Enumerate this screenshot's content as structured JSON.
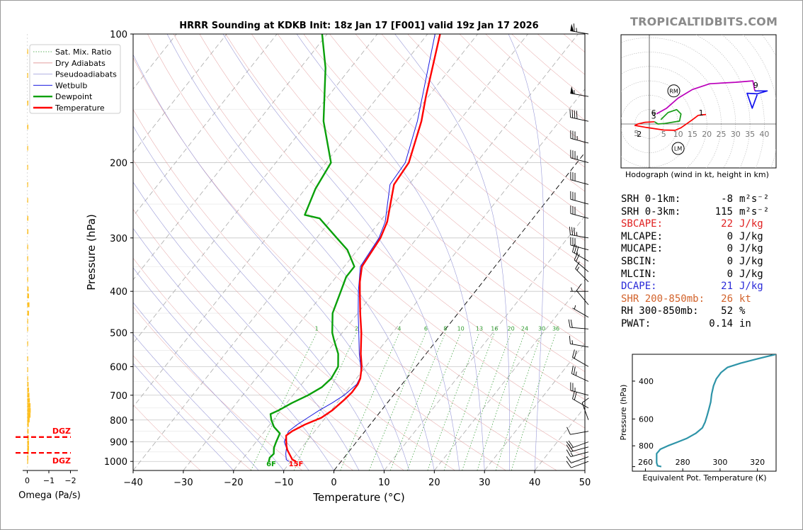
{
  "title": "HRRR Sounding at KDKB Init: 18z Jan 17 [F001] valid 19z Jan 17 2026",
  "brand": "TROPICALTIDBITS.COM",
  "skewt": {
    "xlabel": "Temperature (°C)",
    "ylabel": "Pressure (hPa)",
    "x_ticks": [
      -40,
      -30,
      -20,
      -10,
      0,
      10,
      20,
      30,
      40,
      50
    ],
    "x_tick_labels": [
      "−40",
      "−30",
      "−20",
      "−10",
      "0",
      "10",
      "20",
      "30",
      "40",
      "50"
    ],
    "y_ticks": [
      100,
      200,
      300,
      400,
      500,
      600,
      700,
      800,
      900,
      1000
    ],
    "xlim": [
      -40,
      50
    ],
    "ylim": [
      1050,
      100
    ],
    "legend": [
      "Sat. Mix. Ratio",
      "Dry Adiabats",
      "Pseudoadiabats",
      "Wetbulb",
      "Dewpoint",
      "Temperature"
    ],
    "mixing_ratio_labels": [
      "1",
      "2",
      "4",
      "6",
      "8",
      "10",
      "13",
      "16",
      "20",
      "24",
      "30",
      "36"
    ],
    "surface_dewpoint_label": "6F",
    "surface_temperature_label": "15F",
    "temperature_c": [
      [
        1000,
        -9
      ],
      [
        990,
        -10
      ],
      [
        960,
        -11.5
      ],
      [
        940,
        -12.5
      ],
      [
        920,
        -13.3
      ],
      [
        900,
        -14
      ],
      [
        870,
        -15
      ],
      [
        850,
        -14.5
      ],
      [
        820,
        -13
      ],
      [
        790,
        -10.8
      ],
      [
        760,
        -9.8
      ],
      [
        720,
        -9.1
      ],
      [
        690,
        -8.7
      ],
      [
        660,
        -8.8
      ],
      [
        640,
        -9.2
      ],
      [
        600,
        -10.8
      ],
      [
        560,
        -13
      ],
      [
        500,
        -16.2
      ],
      [
        450,
        -19.5
      ],
      [
        400,
        -23
      ],
      [
        380,
        -24.5
      ],
      [
        350,
        -26.5
      ],
      [
        300,
        -27.3
      ],
      [
        275,
        -28.5
      ],
      [
        225,
        -33
      ],
      [
        200,
        -33.5
      ],
      [
        160,
        -37.5
      ],
      [
        140,
        -40.5
      ],
      [
        100,
        -47.5
      ]
    ],
    "dewpoint_c": [
      [
        1000,
        -14.4
      ],
      [
        980,
        -14.8
      ],
      [
        960,
        -14.6
      ],
      [
        930,
        -15.5
      ],
      [
        900,
        -16
      ],
      [
        860,
        -16.6
      ],
      [
        830,
        -18.8
      ],
      [
        800,
        -20.4
      ],
      [
        775,
        -21.5
      ],
      [
        760,
        -20.5
      ],
      [
        730,
        -19
      ],
      [
        700,
        -17
      ],
      [
        670,
        -15.5
      ],
      [
        640,
        -15
      ],
      [
        600,
        -15.5
      ],
      [
        560,
        -17.5
      ],
      [
        520,
        -20.5
      ],
      [
        500,
        -22
      ],
      [
        450,
        -25
      ],
      [
        400,
        -26.8
      ],
      [
        370,
        -28
      ],
      [
        350,
        -28
      ],
      [
        320,
        -32
      ],
      [
        300,
        -36
      ],
      [
        270,
        -42.5
      ],
      [
        265,
        -46
      ],
      [
        230,
        -48
      ],
      [
        200,
        -49
      ],
      [
        160,
        -57
      ],
      [
        120,
        -65
      ],
      [
        100,
        -71
      ]
    ],
    "wetbulb_c": [
      [
        1000,
        -10.4
      ],
      [
        990,
        -11.2
      ],
      [
        960,
        -12.2
      ],
      [
        930,
        -13
      ],
      [
        900,
        -14.4
      ],
      [
        850,
        -15.2
      ],
      [
        820,
        -14.5
      ],
      [
        790,
        -13.5
      ],
      [
        760,
        -12.4
      ],
      [
        730,
        -11
      ],
      [
        700,
        -9.8
      ],
      [
        660,
        -9
      ],
      [
        630,
        -9.5
      ],
      [
        600,
        -11
      ],
      [
        560,
        -13.3
      ],
      [
        500,
        -16.7
      ],
      [
        450,
        -19.9
      ],
      [
        400,
        -23.3
      ],
      [
        350,
        -26.8
      ],
      [
        300,
        -27.6
      ],
      [
        275,
        -28.9
      ],
      [
        225,
        -33.8
      ],
      [
        200,
        -34.2
      ],
      [
        160,
        -38.3
      ],
      [
        100,
        -48.5
      ]
    ]
  },
  "omega": {
    "xlabel": "Omega (Pa/s)",
    "x_tick_labels": [
      "0",
      "−1",
      "−2"
    ],
    "dgz_label_top": "DGZ",
    "dgz_label_bottom": "DGZ",
    "dgz_top_hpa": 877,
    "dgz_bottom_hpa": 955,
    "profile": [
      [
        1000,
        -0.03
      ],
      [
        980,
        -0.05
      ],
      [
        950,
        -0.07
      ],
      [
        930,
        -0.08
      ],
      [
        905,
        -0.08
      ],
      [
        880,
        -0.07
      ],
      [
        850,
        -0.06
      ],
      [
        820,
        -0.07
      ],
      [
        800,
        -0.11
      ],
      [
        780,
        -0.15
      ],
      [
        760,
        -0.16
      ],
      [
        740,
        -0.15
      ],
      [
        720,
        -0.12
      ],
      [
        700,
        -0.1
      ],
      [
        680,
        -0.08
      ],
      [
        660,
        -0.06
      ],
      [
        640,
        -0.04
      ],
      [
        610,
        -0.02
      ],
      [
        575,
        -0.01
      ],
      [
        530,
        -0.01
      ],
      [
        490,
        -0.01
      ],
      [
        470,
        -0.04
      ],
      [
        450,
        -0.08
      ],
      [
        430,
        -0.1
      ],
      [
        410,
        -0.08
      ],
      [
        395,
        -0.06
      ],
      [
        375,
        -0.04
      ],
      [
        355,
        -0.03
      ],
      [
        335,
        -0.04
      ],
      [
        315,
        -0.04
      ],
      [
        290,
        -0.05
      ],
      [
        270,
        -0.05
      ],
      [
        245,
        -0.04
      ],
      [
        225,
        -0.03
      ],
      [
        205,
        -0.02
      ],
      [
        185,
        -0.04
      ],
      [
        165,
        -0.05
      ],
      [
        145,
        -0.05
      ],
      [
        125,
        -0.04
      ],
      [
        110,
        -0.03
      ]
    ]
  },
  "hodograph": {
    "caption": "Hodograph (wind in kt, height in km)",
    "ring_labels": [
      "5",
      "10",
      "15",
      "20",
      "25",
      "30",
      "35",
      "40"
    ],
    "height_labels": [
      "1",
      "2",
      "3",
      "6",
      "9"
    ],
    "storm_right_label": "RM",
    "storm_left_label": "LM",
    "segments": [
      {
        "range": "0-3km",
        "color": "#ff0000",
        "points": [
          [
            19.7,
            3.3
          ],
          [
            18.5,
            3.2
          ],
          [
            17,
            3
          ],
          [
            15,
            1.5
          ],
          [
            11,
            -1.3
          ],
          [
            9,
            -2.2
          ],
          [
            5,
            -2.1
          ],
          [
            -1,
            -1.2
          ],
          [
            -5,
            -0.5
          ],
          [
            -4,
            0
          ],
          [
            -1.5,
            0.6
          ],
          [
            1.8,
            0.8
          ]
        ]
      },
      {
        "range": "3-6km",
        "color": "#159a15",
        "points": [
          [
            1.8,
            0.8
          ],
          [
            3,
            0
          ],
          [
            5.5,
            0.2
          ],
          [
            10.5,
            1
          ],
          [
            11,
            3.5
          ],
          [
            9.5,
            5
          ],
          [
            6.5,
            4
          ],
          [
            4,
            1.5
          ]
        ]
      },
      {
        "range": "6-9km",
        "color": "#bb00bb",
        "points": [
          [
            2.5,
            3.5
          ],
          [
            6,
            5.5
          ],
          [
            10,
            9
          ],
          [
            15,
            12
          ],
          [
            21,
            14
          ],
          [
            30,
            14.5
          ],
          [
            36,
            15
          ],
          [
            36.7,
            11.5
          ]
        ]
      },
      {
        "range": "9-12km",
        "color": "#1212ee",
        "points": [
          [
            36.7,
            11.5
          ],
          [
            41,
            11.5
          ],
          [
            37.5,
            10.5
          ],
          [
            34,
            10.7
          ],
          [
            35.8,
            5.5
          ],
          [
            37.5,
            10.2
          ]
        ]
      }
    ],
    "rm": [
      8.5,
      11.5
    ],
    "lm": [
      10,
      -8.5
    ]
  },
  "stats": [
    {
      "label": "SRH 0-1km:",
      "value": "-8",
      "unit": "m²s⁻²",
      "color": "#000000"
    },
    {
      "label": "SRH 0-3km:",
      "value": "115",
      "unit": "m²s⁻²",
      "color": "#000000"
    },
    {
      "label": "SBCAPE:",
      "value": "22",
      "unit": "J/kg",
      "color": "#e02020"
    },
    {
      "label": "MLCAPE:",
      "value": "0",
      "unit": "J/kg",
      "color": "#000000"
    },
    {
      "label": "MUCAPE:",
      "value": "0",
      "unit": "J/kg",
      "color": "#000000"
    },
    {
      "label": "SBCIN:",
      "value": "0",
      "unit": "J/kg",
      "color": "#000000"
    },
    {
      "label": "MLCIN:",
      "value": "0",
      "unit": "J/kg",
      "color": "#000000"
    },
    {
      "label": "DCAPE:",
      "value": "21",
      "unit": "J/kg",
      "color": "#2a2ad8"
    },
    {
      "label": "SHR 200-850mb:",
      "value": "26",
      "unit": "kt",
      "color": "#d2622a"
    },
    {
      "label": "RH 300-850mb:",
      "value": "52",
      "unit": "%",
      "color": "#000000"
    },
    {
      "label": "PWAT:",
      "value": "0.14",
      "unit": "in",
      "color": "#000000"
    }
  ],
  "theta_e": {
    "xlabel": "Equivalent Pot. Temperature (K)",
    "ylabel": "Pressure (hPa)",
    "x_ticks": [
      260,
      280,
      300,
      320
    ],
    "y_ticks": [
      400,
      600,
      800
    ],
    "xlim": [
      253,
      330
    ],
    "ylim": [
      1050,
      300
    ],
    "profile": [
      [
        1000,
        268.5
      ],
      [
        990,
        266.5
      ],
      [
        960,
        266
      ],
      [
        930,
        266
      ],
      [
        900,
        266
      ],
      [
        870,
        266
      ],
      [
        850,
        267
      ],
      [
        830,
        268
      ],
      [
        800,
        272
      ],
      [
        770,
        277
      ],
      [
        740,
        282
      ],
      [
        700,
        287
      ],
      [
        660,
        290.5
      ],
      [
        620,
        292
      ],
      [
        580,
        293
      ],
      [
        540,
        294
      ],
      [
        500,
        295
      ],
      [
        460,
        295.5
      ],
      [
        420,
        296.5
      ],
      [
        390,
        298
      ],
      [
        365,
        300.5
      ],
      [
        345,
        304
      ],
      [
        330,
        311
      ],
      [
        315,
        320
      ],
      [
        300,
        330
      ]
    ]
  },
  "barbs": [
    {
      "p": 100,
      "spd": 65,
      "dir": 280
    },
    {
      "p": 140,
      "spd": 55,
      "dir": 280
    },
    {
      "p": 160,
      "spd": 40,
      "dir": 282
    },
    {
      "p": 180,
      "spd": 35,
      "dir": 285
    },
    {
      "p": 200,
      "spd": 35,
      "dir": 285
    },
    {
      "p": 225,
      "spd": 30,
      "dir": 285
    },
    {
      "p": 250,
      "spd": 30,
      "dir": 285
    },
    {
      "p": 270,
      "spd": 30,
      "dir": 285
    },
    {
      "p": 300,
      "spd": 35,
      "dir": 280
    },
    {
      "p": 320,
      "spd": 30,
      "dir": 285
    },
    {
      "p": 340,
      "spd": 30,
      "dir": 300
    },
    {
      "p": 360,
      "spd": 20,
      "dir": 310
    },
    {
      "p": 380,
      "spd": 15,
      "dir": 315
    },
    {
      "p": 400,
      "spd": 5,
      "dir": 270
    },
    {
      "p": 430,
      "spd": 10,
      "dir": 320
    },
    {
      "p": 460,
      "spd": 5,
      "dir": 300
    },
    {
      "p": 490,
      "spd": 20,
      "dir": 275
    },
    {
      "p": 540,
      "spd": 15,
      "dir": 280
    },
    {
      "p": 600,
      "spd": 20,
      "dir": 300
    },
    {
      "p": 650,
      "spd": 25,
      "dir": 295
    },
    {
      "p": 700,
      "spd": 25,
      "dir": 285
    },
    {
      "p": 750,
      "spd": 20,
      "dir": 300
    },
    {
      "p": 800,
      "spd": 10,
      "dir": 340
    },
    {
      "p": 850,
      "spd": 10,
      "dir": 260
    },
    {
      "p": 900,
      "spd": 20,
      "dir": 250
    },
    {
      "p": 925,
      "spd": 20,
      "dir": 255
    },
    {
      "p": 950,
      "spd": 15,
      "dir": 255
    },
    {
      "p": 975,
      "spd": 10,
      "dir": 250
    },
    {
      "p": 1000,
      "spd": 10,
      "dir": 250
    }
  ]
}
